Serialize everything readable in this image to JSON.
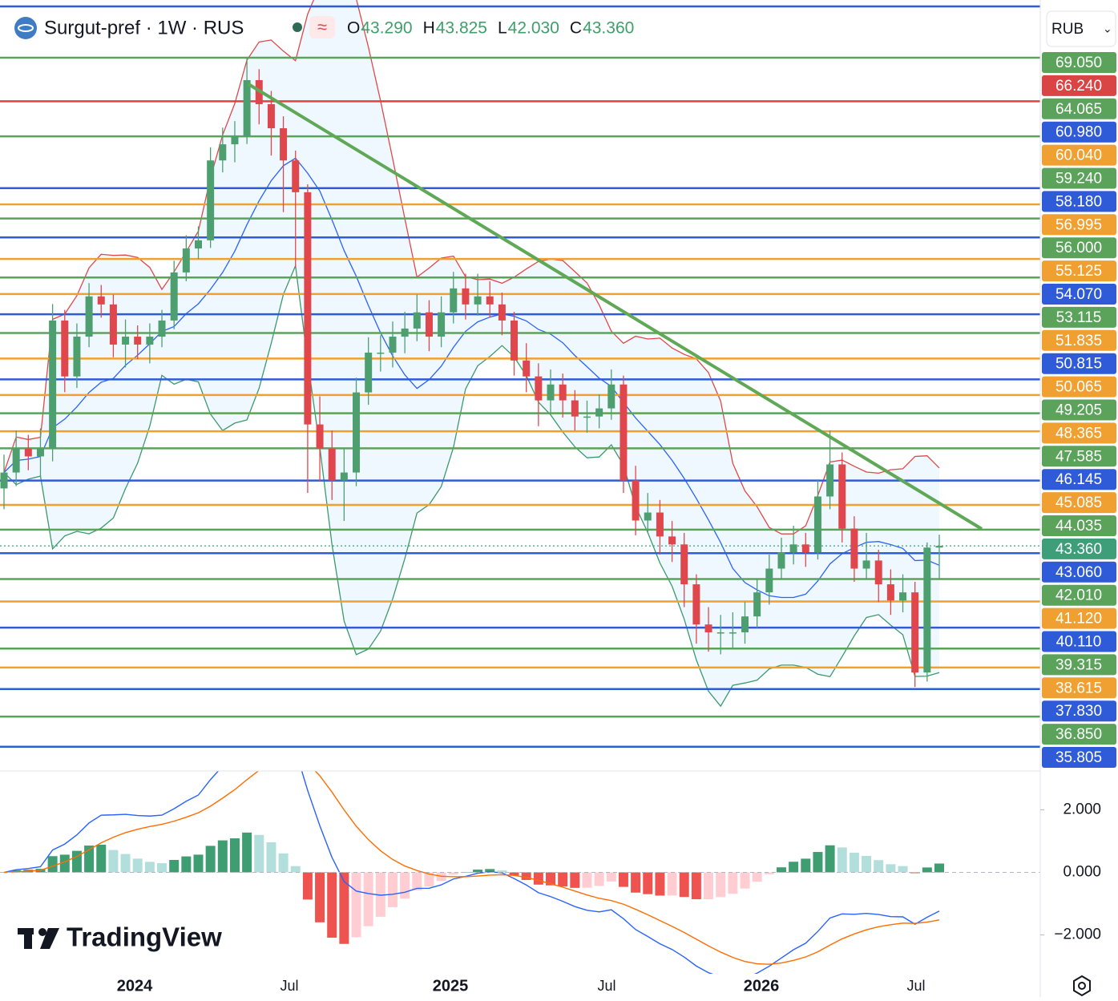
{
  "header": {
    "symbol": "Surgut-pref · 1W · RUS",
    "ohlc": [
      {
        "key": "O",
        "value": "43.290"
      },
      {
        "key": "H",
        "value": "43.825"
      },
      {
        "key": "L",
        "value": "42.030"
      },
      {
        "key": "C",
        "value": "43.360"
      }
    ],
    "currency": "RUB"
  },
  "chart_data": {
    "type": "candlestick",
    "log_scale": true,
    "ylim": [
      35.04,
      72.51
    ],
    "up_color": "#4e9f6f",
    "down_color": "#e0474c",
    "open": [
      45.8,
      46.5,
      47.57,
      47.22,
      47.57,
      53.75,
      50.96,
      52.93,
      55.0,
      54.58,
      52.53,
      52.93,
      52.53,
      52.93,
      53.75,
      56.27,
      57.57,
      58.02,
      62.61,
      63.58,
      64.07,
      67.59,
      66.06,
      64.56,
      62.61,
      60.74,
      48.68,
      47.57,
      46.15,
      46.5,
      50.19,
      52.13,
      52.13,
      52.93,
      53.34,
      54.17,
      52.93,
      54.17,
      55.42,
      54.58,
      55.0,
      54.58,
      53.75,
      51.74,
      50.96,
      49.81,
      50.57,
      49.81,
      49.05,
      49.05,
      49.43,
      50.57,
      46.15,
      44.42,
      44.76,
      43.75,
      43.42,
      41.8,
      40.23,
      39.93,
      39.93,
      39.93,
      40.54,
      41.48,
      42.43,
      43.09,
      43.42,
      43.09,
      45.45,
      46.86,
      44.08,
      42.43,
      42.76,
      41.8,
      41.16,
      41.48,
      38.43,
      43.29
    ],
    "high": [
      47.3,
      48.4,
      48.2,
      48.5,
      54.6,
      54.3,
      53.6,
      55.7,
      55.6,
      55.1,
      53.8,
      53.5,
      53.6,
      54.3,
      56.9,
      58.3,
      58.8,
      63.4,
      64.6,
      65.0,
      69.05,
      68.3,
      66.9,
      65.3,
      63.2,
      61.2,
      50.0,
      48.4,
      47.6,
      50.9,
      52.9,
      53.0,
      53.7,
      54.2,
      55.1,
      54.8,
      55.0,
      56.3,
      56.2,
      56.2,
      55.8,
      55.2,
      54.2,
      52.6,
      51.6,
      51.3,
      51.1,
      50.3,
      49.8,
      50.1,
      51.3,
      51.0,
      46.8,
      45.6,
      45.3,
      44.4,
      43.9,
      42.2,
      40.9,
      40.6,
      40.7,
      41.1,
      42.0,
      43.0,
      43.7,
      44.2,
      43.9,
      46.2,
      48.4,
      47.4,
      44.6,
      43.9,
      43.2,
      42.4,
      42.2,
      41.9,
      43.5,
      43.825
    ],
    "low": [
      44.9,
      45.9,
      46.6,
      46.3,
      47.0,
      50.2,
      50.4,
      52.4,
      53.9,
      51.9,
      51.4,
      51.8,
      51.6,
      52.4,
      53.3,
      55.8,
      57.0,
      57.6,
      61.9,
      62.5,
      63.6,
      64.8,
      62.9,
      59.6,
      56.5,
      45.6,
      46.1,
      45.3,
      44.4,
      45.9,
      49.6,
      51.2,
      51.4,
      52.1,
      52.7,
      52.2,
      52.4,
      53.6,
      53.8,
      54.0,
      53.9,
      53.0,
      51.0,
      50.2,
      48.6,
      49.2,
      49.0,
      48.4,
      48.3,
      48.5,
      48.9,
      45.6,
      43.8,
      43.9,
      43.0,
      42.7,
      40.9,
      39.5,
      39.2,
      39.1,
      39.3,
      39.5,
      40.1,
      41.0,
      42.0,
      42.6,
      42.5,
      42.8,
      44.9,
      43.5,
      41.9,
      42.0,
      41.1,
      40.6,
      40.7,
      37.9,
      38.1,
      42.03
    ],
    "close": [
      46.5,
      47.57,
      47.22,
      47.57,
      53.75,
      50.96,
      52.93,
      55.0,
      54.58,
      52.53,
      52.93,
      52.53,
      52.93,
      53.75,
      56.27,
      57.57,
      58.02,
      62.61,
      63.58,
      64.07,
      67.59,
      66.06,
      64.56,
      62.61,
      60.74,
      48.68,
      47.57,
      46.15,
      46.5,
      50.19,
      52.13,
      52.13,
      52.93,
      53.34,
      54.17,
      52.93,
      54.17,
      55.42,
      54.58,
      55.0,
      54.58,
      53.75,
      51.74,
      50.96,
      49.81,
      50.57,
      49.81,
      49.05,
      49.05,
      49.43,
      50.57,
      46.15,
      44.42,
      44.76,
      43.75,
      43.42,
      41.8,
      40.23,
      39.93,
      39.93,
      39.93,
      40.54,
      41.48,
      42.43,
      43.09,
      43.42,
      43.09,
      45.45,
      46.86,
      44.08,
      42.43,
      42.76,
      41.8,
      41.16,
      41.48,
      38.43,
      43.29,
      43.36
    ],
    "levels": [
      {
        "value": 69.05,
        "label": "69.050",
        "color": "#5ba35a"
      },
      {
        "value": 66.24,
        "label": "66.240",
        "color": "#d94545"
      },
      {
        "value": 64.065,
        "label": "64.065",
        "color": "#5ba35a"
      },
      {
        "value": 60.98,
        "label": "60.980",
        "color": "#2f5bd8"
      },
      {
        "value": 60.04,
        "label": "60.040",
        "color": "#f0a030"
      },
      {
        "value": 59.24,
        "label": "59.240",
        "color": "#5ba35a"
      },
      {
        "value": 58.18,
        "label": "58.180",
        "color": "#2f5bd8"
      },
      {
        "value": 56.995,
        "label": "56.995",
        "color": "#f0a030"
      },
      {
        "value": 56.0,
        "label": "56.000",
        "color": "#5ba35a"
      },
      {
        "value": 55.125,
        "label": "55.125",
        "color": "#f0a030"
      },
      {
        "value": 54.07,
        "label": "54.070",
        "color": "#2f5bd8"
      },
      {
        "value": 53.115,
        "label": "53.115",
        "color": "#5ba35a"
      },
      {
        "value": 51.835,
        "label": "51.835",
        "color": "#f0a030"
      },
      {
        "value": 50.815,
        "label": "50.815",
        "color": "#2f5bd8"
      },
      {
        "value": 50.065,
        "label": "50.065",
        "color": "#f0a030"
      },
      {
        "value": 49.205,
        "label": "49.205",
        "color": "#5ba35a"
      },
      {
        "value": 48.365,
        "label": "48.365",
        "color": "#f0a030"
      },
      {
        "value": 47.585,
        "label": "47.585",
        "color": "#5ba35a"
      },
      {
        "value": 46.145,
        "label": "46.145",
        "color": "#2f5bd8"
      },
      {
        "value": 45.085,
        "label": "45.085",
        "color": "#f0a030"
      },
      {
        "value": 44.035,
        "label": "44.035",
        "color": "#5ba35a"
      },
      {
        "value": 43.36,
        "label": "43.360",
        "color": "#3f9e7a"
      },
      {
        "value": 43.06,
        "label": "43.060",
        "color": "#2f5bd8"
      },
      {
        "value": 42.01,
        "label": "42.010",
        "color": "#5ba35a"
      },
      {
        "value": 41.12,
        "label": "41.120",
        "color": "#f0a030"
      },
      {
        "value": 40.11,
        "label": "40.110",
        "color": "#2f5bd8"
      },
      {
        "value": 39.315,
        "label": "39.315",
        "color": "#5ba35a"
      },
      {
        "value": 38.615,
        "label": "38.615",
        "color": "#f0a030"
      },
      {
        "value": 37.83,
        "label": "37.830",
        "color": "#2f5bd8"
      },
      {
        "value": 36.85,
        "label": "36.850",
        "color": "#5ba35a"
      },
      {
        "value": 35.805,
        "label": "35.805",
        "color": "#2f5bd8"
      }
    ],
    "x_labels": [
      "2024",
      "Jul",
      "2025",
      "Jul",
      "2026",
      "Jul"
    ],
    "macd": {
      "ylim": [
        -3.24,
        3.24
      ],
      "yticks": [
        {
          "value": 2,
          "label": "2.000"
        },
        {
          "value": 0,
          "label": "0.000"
        },
        {
          "value": -2,
          "label": "−2.000"
        }
      ]
    }
  },
  "logo": "TradingView"
}
